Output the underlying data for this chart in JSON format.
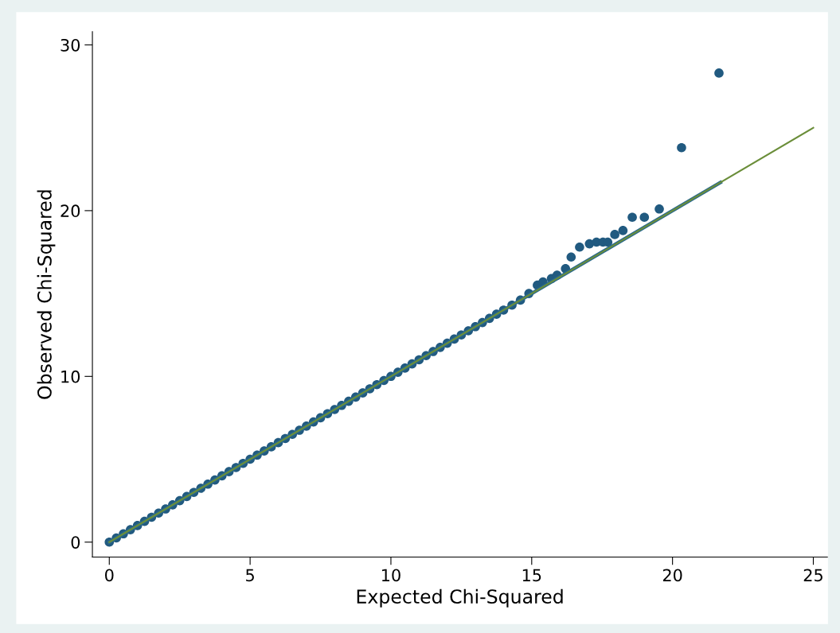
{
  "chart_data": {
    "type": "scatter",
    "xlabel": "Expected Chi-Squared",
    "ylabel": "Observed Chi-Squared",
    "xlim": [
      -0.6,
      25.5
    ],
    "ylim": [
      -0.9,
      30.8
    ],
    "xticks": [
      0,
      5,
      10,
      15,
      20,
      25
    ],
    "yticks": [
      0,
      10,
      20,
      30
    ],
    "grid": false,
    "series": [
      {
        "color": "#215a80",
        "marker": "circle",
        "x": [
          0,
          0.25,
          0.5,
          0.75,
          1,
          1.25,
          1.5,
          1.75,
          2,
          2.25,
          2.5,
          2.75,
          3,
          3.25,
          3.5,
          3.75,
          4,
          4.25,
          4.5,
          4.75,
          5,
          5.25,
          5.5,
          5.75,
          6,
          6.25,
          6.5,
          6.75,
          7,
          7.25,
          7.5,
          7.75,
          8,
          8.25,
          8.5,
          8.75,
          9,
          9.25,
          9.5,
          9.75,
          10,
          10.25,
          10.5,
          10.75,
          11,
          11.25,
          11.5,
          11.75,
          12,
          12.25,
          12.5,
          12.75,
          13,
          13.25,
          13.5,
          13.75,
          14,
          14.3,
          14.6,
          14.9,
          15.2,
          15.4,
          15.7,
          15.9,
          16.2,
          16.4,
          16.7,
          17.05,
          17.3,
          17.53,
          17.7,
          17.95,
          18.24,
          18.57,
          19.0,
          19.53,
          20.32,
          21.65
        ],
        "values": [
          0,
          0.25,
          0.5,
          0.75,
          1,
          1.25,
          1.5,
          1.75,
          2,
          2.25,
          2.5,
          2.75,
          3,
          3.25,
          3.5,
          3.75,
          4,
          4.25,
          4.5,
          4.75,
          5,
          5.25,
          5.5,
          5.75,
          6,
          6.25,
          6.5,
          6.75,
          7,
          7.25,
          7.5,
          7.75,
          8,
          8.25,
          8.5,
          8.75,
          9,
          9.25,
          9.5,
          9.75,
          10,
          10.25,
          10.5,
          10.75,
          11,
          11.25,
          11.5,
          11.75,
          12,
          12.25,
          12.5,
          12.75,
          13,
          13.25,
          13.5,
          13.75,
          14,
          14.3,
          14.6,
          15.0,
          15.5,
          15.7,
          15.9,
          16.1,
          16.5,
          17.2,
          17.8,
          18.0,
          18.1,
          18.1,
          18.1,
          18.56,
          18.8,
          19.6,
          19.6,
          20.1,
          23.8,
          28.3
        ]
      },
      {
        "type": "line",
        "color": "#2b6a8a",
        "x": [
          0,
          21.7
        ],
        "values": [
          0,
          21.7
        ]
      },
      {
        "type": "line",
        "color": "#6b8e3a",
        "x": [
          0,
          25
        ],
        "values": [
          0,
          25
        ]
      }
    ]
  }
}
